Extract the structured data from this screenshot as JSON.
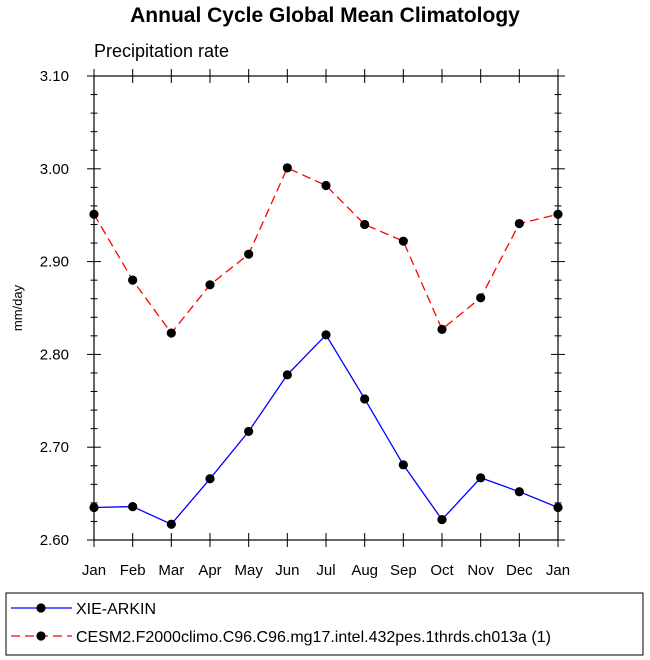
{
  "chart_data": {
    "type": "line",
    "title": "Annual Cycle Global Mean Climatology",
    "subtitle": "Precipitation rate",
    "xlabel": "",
    "ylabel": "mm/day",
    "categories": [
      "Jan",
      "Feb",
      "Mar",
      "Apr",
      "May",
      "Jun",
      "Jul",
      "Aug",
      "Sep",
      "Oct",
      "Nov",
      "Dec",
      "Jan"
    ],
    "ylim": [
      2.6,
      3.1
    ],
    "yticks": [
      "2.60",
      "2.70",
      "2.80",
      "2.90",
      "3.00",
      "3.10"
    ],
    "grid": false,
    "legend_position": "bottom",
    "series": [
      {
        "name": "XIE-ARKIN",
        "color": "#0000ff",
        "line_style": "solid",
        "marker": "filled-circle",
        "values": [
          2.635,
          2.636,
          2.617,
          2.666,
          2.717,
          2.778,
          2.821,
          2.752,
          2.681,
          2.622,
          2.667,
          2.652,
          2.635
        ]
      },
      {
        "name": "CESM2.F2000climo.C96.C96.mg17.intel.432pes.1thrds.ch013a (1)",
        "color": "#ff0000",
        "line_style": "dashed",
        "marker": "filled-circle",
        "values": [
          2.951,
          2.88,
          2.823,
          2.875,
          2.908,
          3.001,
          2.982,
          2.94,
          2.922,
          2.827,
          2.861,
          2.941,
          2.951
        ]
      }
    ]
  }
}
